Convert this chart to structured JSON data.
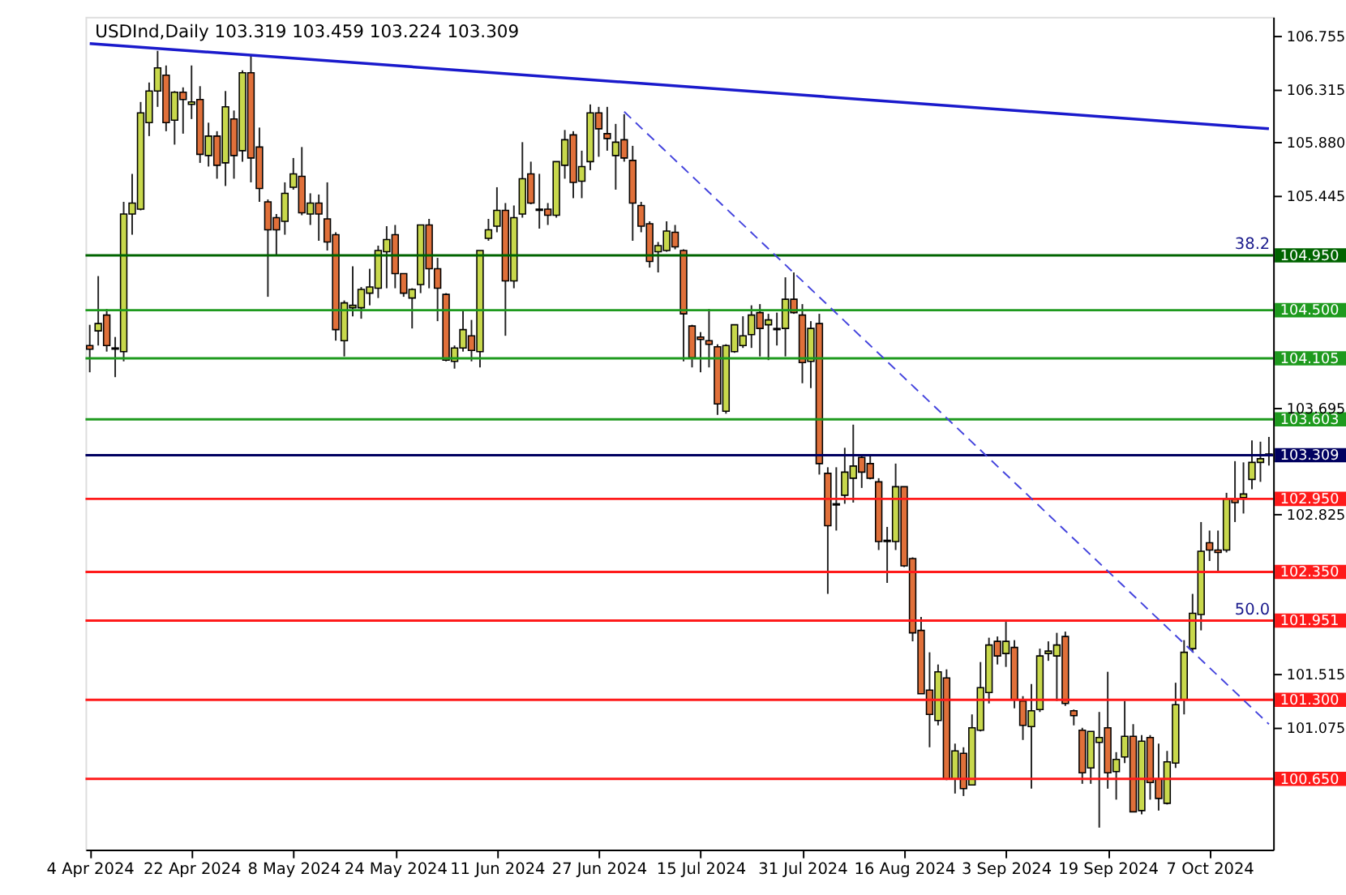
{
  "chart_data": {
    "type": "candlestick",
    "title": "USDInd,Daily 103.319 103.459 103.224 103.309",
    "colors": [
      "#e0703a",
      "#c8d84c",
      "#e0703a",
      "#e0703a",
      "#c8d84c",
      "#c8d84c",
      "#c8d84c",
      "#c8d84c",
      "#c8d84c",
      "#e0703a",
      "#c8d84c",
      "#e0703a",
      "#c8d84c",
      "#e0703a",
      "#c8d84c",
      "#e0703a",
      "#c8d84c",
      "#e0703a",
      "#c8d84c",
      "#e0703a",
      "#e0703a",
      "#e0703a",
      "#e0703a",
      "#c8d84c",
      "#c8d84c",
      "#e0703a",
      "#c8d84c",
      "#e0703a",
      "#e0703a",
      "#e0703a",
      "#c8d84c",
      "#c8d84c",
      "#c8d84c",
      "#c8d84c",
      "#c8d84c",
      "#c8d84c",
      "#e0703a",
      "#e0703a",
      "#c8d84c",
      "#c8d84c",
      "#e0703a",
      "#e0703a",
      "#e0703a",
      "#c8d84c",
      "#c8d84c",
      "#e0703a",
      "#c8d84c",
      "#c8d84c",
      "#c8d84c",
      "#e0703a",
      "#c8d84c",
      "#c8d84c",
      "#e0703a",
      "#e0703a",
      "#e0703a",
      "#c8d84c",
      "#c8d84c",
      "#e0703a",
      "#c8d84c",
      "#c8d84c",
      "#e0703a",
      "#e0703a",
      "#c8d84c",
      "#e0703a",
      "#e0703a",
      "#e0703a",
      "#e0703a",
      "#c8d84c",
      "#c8d84c",
      "#e0703a",
      "#e0703a",
      "#e0703a",
      "#e0703a",
      "#e0703a",
      "#e0703a",
      "#c8d84c",
      "#c8d84c",
      "#c8d84c",
      "#c8d84c",
      "#e0703a",
      "#c8d84c",
      "#c8d84c",
      "#c8d84c",
      "#e0703a",
      "#e0703a",
      "#c8d84c",
      "#e0703a",
      "#e0703a",
      "#e0703a",
      "#c8d84c",
      "#c8d84c",
      "#e0703a",
      "#e0703a",
      "#e0703a",
      "#e0703a",
      "#c8d84c",
      "#e0703a",
      "#e0703a",
      "#e0703a",
      "#e0703a",
      "#c8d84c",
      "#e0703a",
      "#c8d84c",
      "#e0703a",
      "#c8d84c",
      "#c8d84c",
      "#c8d84c",
      "#e0703a",
      "#c8d84c",
      "#e0703a",
      "#e0703a",
      "#c8d84c",
      "#c8d84c",
      "#c8d84c",
      "#c8d84c",
      "#e0703a",
      "#e0703a",
      "#e0703a",
      "#c8d84c",
      "#c8d84c",
      "#e0703a",
      "#c8d84c",
      "#c8d84c",
      "#e0703a",
      "#c8d84c",
      "#e0703a",
      "#e0703a",
      "#c8d84c",
      "#c8d84c",
      "#c8d84c",
      "#c8d84c",
      "#c8d84c",
      "#e0703a",
      "#e0703a",
      "#c8d84c",
      "#e0703a",
      "#c8d84c",
      "#c8d84c",
      "#c8d84c",
      "#e0703a"
    ],
    "categories": [
      "4 Apr 2024",
      null,
      null,
      null,
      null,
      null,
      null,
      null,
      null,
      null,
      null,
      null,
      "22 Apr 2024",
      null,
      null,
      null,
      null,
      null,
      null,
      null,
      null,
      null,
      null,
      null,
      "8 May 2024",
      null,
      null,
      null,
      null,
      null,
      null,
      null,
      null,
      null,
      null,
      null,
      "24 May 2024",
      null,
      null,
      null,
      null,
      null,
      null,
      null,
      null,
      null,
      null,
      null,
      "11 Jun 2024",
      null,
      null,
      null,
      null,
      null,
      null,
      null,
      null,
      null,
      null,
      null,
      "27 Jun 2024",
      null,
      null,
      null,
      null,
      null,
      null,
      null,
      null,
      null,
      null,
      null,
      "15 Jul 2024",
      null,
      null,
      null,
      null,
      null,
      null,
      null,
      null,
      null,
      null,
      null,
      "31 Jul 2024",
      null,
      null,
      null,
      null,
      null,
      null,
      null,
      null,
      null,
      null,
      null,
      "16 Aug 2024",
      null,
      null,
      null,
      null,
      null,
      null,
      null,
      null,
      null,
      null,
      null,
      "3 Sep 2024",
      null,
      null,
      null,
      null,
      null,
      null,
      null,
      null,
      null,
      null,
      null,
      "19 Sep 2024",
      null,
      null,
      null,
      null,
      null,
      null,
      null,
      null,
      null,
      null,
      null,
      "7 Oct 2024",
      null,
      null,
      null,
      null,
      null,
      null,
      null
    ],
    "ohlc": [
      [
        104.21,
        104.38,
        103.99,
        104.18
      ],
      [
        104.33,
        104.78,
        104.21,
        104.39
      ],
      [
        104.46,
        104.51,
        104.16,
        104.21
      ],
      [
        104.19,
        104.28,
        103.95,
        104.18
      ],
      [
        104.16,
        105.39,
        104.08,
        105.29
      ],
      [
        105.29,
        105.62,
        105.12,
        105.38
      ],
      [
        105.33,
        106.21,
        105.32,
        106.12
      ],
      [
        106.04,
        106.37,
        105.93,
        106.3
      ],
      [
        106.3,
        106.63,
        106.17,
        106.49
      ],
      [
        106.43,
        106.51,
        105.97,
        106.04
      ],
      [
        106.06,
        106.3,
        105.86,
        106.29
      ],
      [
        106.29,
        106.33,
        105.95,
        106.23
      ],
      [
        106.19,
        106.51,
        106.07,
        106.21
      ],
      [
        106.23,
        106.34,
        105.71,
        105.78
      ],
      [
        105.77,
        106.04,
        105.68,
        105.93
      ],
      [
        105.93,
        105.97,
        105.58,
        105.69
      ],
      [
        105.71,
        106.3,
        105.52,
        106.17
      ],
      [
        106.07,
        106.14,
        105.58,
        105.77
      ],
      [
        105.81,
        106.47,
        105.72,
        106.45
      ],
      [
        106.45,
        106.6,
        105.55,
        105.75
      ],
      [
        105.84,
        106.0,
        105.39,
        105.5
      ],
      [
        105.39,
        105.41,
        104.61,
        105.16
      ],
      [
        105.26,
        105.29,
        104.95,
        105.16
      ],
      [
        105.23,
        105.55,
        105.12,
        105.46
      ],
      [
        105.51,
        105.75,
        105.49,
        105.62
      ],
      [
        105.6,
        105.84,
        105.28,
        105.3
      ],
      [
        105.29,
        105.46,
        105.2,
        105.38
      ],
      [
        105.38,
        105.45,
        105.07,
        105.29
      ],
      [
        105.25,
        105.55,
        104.99,
        105.06
      ],
      [
        105.12,
        105.14,
        104.25,
        104.34
      ],
      [
        104.25,
        104.58,
        104.12,
        104.56
      ],
      [
        104.52,
        104.86,
        104.45,
        104.54
      ],
      [
        104.52,
        104.69,
        104.43,
        104.67
      ],
      [
        104.64,
        104.84,
        104.54,
        104.69
      ],
      [
        104.68,
        105.03,
        104.6,
        104.99
      ],
      [
        104.98,
        105.19,
        104.68,
        105.08
      ],
      [
        105.12,
        105.2,
        104.68,
        104.8
      ],
      [
        104.8,
        104.8,
        104.61,
        104.64
      ],
      [
        104.6,
        104.68,
        104.35,
        104.67
      ],
      [
        104.71,
        105.2,
        104.64,
        105.2
      ],
      [
        105.2,
        105.25,
        104.68,
        104.84
      ],
      [
        104.84,
        104.93,
        104.41,
        104.68
      ],
      [
        104.63,
        104.64,
        104.08,
        104.09
      ],
      [
        104.08,
        104.21,
        104.02,
        104.19
      ],
      [
        104.19,
        104.5,
        104.16,
        104.34
      ],
      [
        104.29,
        104.42,
        104.08,
        104.17
      ],
      [
        104.16,
        104.99,
        104.03,
        104.99
      ],
      [
        105.09,
        105.25,
        105.07,
        105.16
      ],
      [
        105.19,
        105.51,
        105.14,
        105.32
      ],
      [
        105.32,
        105.38,
        104.29,
        104.74
      ],
      [
        104.74,
        105.36,
        104.68,
        105.26
      ],
      [
        105.29,
        105.88,
        105.26,
        105.58
      ],
      [
        105.62,
        105.72,
        105.37,
        105.38
      ],
      [
        105.33,
        105.62,
        105.17,
        105.32
      ],
      [
        105.33,
        105.38,
        105.2,
        105.28
      ],
      [
        105.28,
        105.72,
        105.26,
        105.72
      ],
      [
        105.69,
        105.98,
        105.58,
        105.9
      ],
      [
        105.94,
        105.97,
        105.42,
        105.55
      ],
      [
        105.56,
        105.81,
        105.42,
        105.68
      ],
      [
        105.72,
        106.19,
        105.65,
        106.12
      ],
      [
        106.12,
        106.17,
        105.76,
        105.99
      ],
      [
        105.95,
        106.17,
        105.81,
        105.91
      ],
      [
        105.77,
        106.03,
        105.49,
        105.88
      ],
      [
        105.9,
        106.11,
        105.72,
        105.75
      ],
      [
        105.73,
        105.85,
        105.07,
        105.38
      ],
      [
        105.36,
        105.39,
        105.14,
        105.19
      ],
      [
        105.21,
        105.23,
        104.85,
        104.9
      ],
      [
        104.98,
        105.06,
        104.81,
        105.03
      ],
      [
        104.99,
        105.23,
        104.98,
        105.15
      ],
      [
        105.14,
        105.2,
        105.0,
        105.02
      ],
      [
        104.99,
        105.0,
        104.08,
        104.47
      ],
      [
        104.37,
        104.38,
        104.03,
        104.11
      ],
      [
        104.28,
        104.32,
        103.99,
        104.26
      ],
      [
        104.25,
        104.51,
        104.03,
        104.22
      ],
      [
        104.2,
        104.22,
        103.64,
        103.73
      ],
      [
        103.67,
        104.22,
        103.65,
        104.21
      ],
      [
        104.16,
        104.38,
        104.15,
        104.38
      ],
      [
        104.21,
        104.45,
        104.19,
        104.29
      ],
      [
        104.3,
        104.54,
        104.19,
        104.46
      ],
      [
        104.48,
        104.55,
        104.12,
        104.35
      ],
      [
        104.38,
        104.47,
        104.09,
        104.42
      ],
      [
        104.34,
        104.48,
        104.21,
        104.35
      ],
      [
        104.35,
        104.77,
        104.12,
        104.59
      ],
      [
        104.59,
        104.81,
        104.47,
        104.48
      ],
      [
        104.46,
        104.55,
        103.9,
        104.07
      ],
      [
        104.08,
        104.41,
        103.86,
        104.35
      ],
      [
        104.39,
        104.47,
        103.15,
        103.24
      ],
      [
        103.16,
        103.21,
        102.17,
        102.73
      ],
      [
        102.91,
        103.21,
        102.69,
        102.9
      ],
      [
        102.98,
        103.37,
        102.91,
        103.17
      ],
      [
        103.12,
        103.56,
        102.92,
        103.22
      ],
      [
        103.29,
        103.3,
        103.04,
        103.17
      ],
      [
        103.24,
        103.3,
        103.11,
        103.12
      ],
      [
        103.09,
        103.12,
        102.53,
        102.6
      ],
      [
        102.61,
        102.72,
        102.26,
        102.6
      ],
      [
        102.6,
        103.24,
        102.53,
        103.05
      ],
      [
        103.05,
        103.05,
        102.39,
        102.4
      ],
      [
        102.46,
        102.47,
        101.78,
        101.85
      ],
      [
        101.87,
        101.98,
        101.35,
        101.35
      ],
      [
        101.38,
        101.69,
        100.91,
        101.18
      ],
      [
        101.13,
        101.59,
        101.09,
        101.53
      ],
      [
        101.48,
        101.55,
        100.64,
        100.65
      ],
      [
        100.65,
        100.94,
        100.53,
        100.88
      ],
      [
        100.86,
        100.91,
        100.51,
        100.57
      ],
      [
        100.6,
        101.18,
        100.6,
        101.07
      ],
      [
        101.05,
        101.61,
        101.04,
        101.4
      ],
      [
        101.36,
        101.81,
        101.27,
        101.75
      ],
      [
        101.78,
        101.82,
        101.59,
        101.66
      ],
      [
        101.68,
        101.94,
        101.57,
        101.78
      ],
      [
        101.73,
        101.79,
        101.23,
        101.3
      ],
      [
        101.29,
        101.33,
        100.97,
        101.09
      ],
      [
        101.08,
        101.43,
        100.57,
        101.21
      ],
      [
        101.22,
        101.72,
        101.2,
        101.66
      ],
      [
        101.68,
        101.78,
        101.62,
        101.7
      ],
      [
        101.66,
        101.85,
        101.29,
        101.75
      ],
      [
        101.82,
        101.86,
        101.25,
        101.27
      ],
      [
        101.21,
        101.22,
        101.09,
        101.17
      ],
      [
        101.05,
        101.07,
        100.61,
        100.7
      ],
      [
        100.74,
        101.04,
        100.61,
        101.04
      ],
      [
        100.95,
        101.2,
        100.25,
        100.99
      ],
      [
        101.07,
        101.53,
        100.57,
        100.7
      ],
      [
        100.71,
        100.87,
        100.48,
        100.81
      ],
      [
        100.83,
        101.29,
        100.78,
        101.0
      ],
      [
        101.0,
        101.1,
        100.38,
        100.38
      ],
      [
        100.39,
        101.01,
        100.36,
        100.96
      ],
      [
        100.99,
        101.01,
        100.48,
        100.62
      ],
      [
        100.65,
        100.94,
        100.39,
        100.49
      ],
      [
        100.45,
        100.88,
        100.44,
        100.79
      ],
      [
        100.78,
        101.44,
        100.74,
        101.26
      ],
      [
        101.3,
        101.79,
        101.18,
        101.69
      ],
      [
        101.72,
        102.17,
        101.69,
        102.01
      ],
      [
        102.0,
        102.76,
        101.87,
        102.52
      ],
      [
        102.59,
        102.69,
        102.44,
        102.53
      ],
      [
        102.53,
        102.69,
        102.34,
        102.51
      ],
      [
        102.53,
        103.0,
        102.51,
        102.95
      ],
      [
        102.95,
        103.26,
        102.76,
        102.92
      ],
      [
        102.96,
        103.25,
        102.83,
        102.99
      ],
      [
        103.11,
        103.43,
        103.03,
        103.25
      ],
      [
        103.25,
        103.42,
        103.09,
        103.28
      ],
      [
        103.319,
        103.459,
        103.224,
        103.309
      ]
    ],
    "series": [
      {
        "type": "line",
        "color": "#1a1acc",
        "values": [
          106.69,
          null,
          null,
          null,
          null,
          null,
          null,
          null,
          null,
          null,
          null,
          null,
          null,
          null,
          null,
          null,
          null,
          null,
          null,
          null,
          null,
          null,
          null,
          null,
          null,
          null,
          null,
          null,
          null,
          null,
          null,
          null,
          null,
          null,
          null,
          null,
          null,
          null,
          null,
          null,
          null,
          null,
          null,
          null,
          null,
          null,
          null,
          null,
          null,
          null,
          null,
          null,
          null,
          null,
          null,
          null,
          null,
          null,
          null,
          null,
          null,
          null,
          null,
          null,
          null,
          null,
          null,
          null,
          null,
          null,
          null,
          null,
          null,
          null,
          null,
          null,
          null,
          null,
          null,
          null,
          null,
          null,
          null,
          null,
          null,
          null,
          null,
          null,
          null,
          null,
          null,
          null,
          null,
          null,
          null,
          null,
          null,
          null,
          null,
          null,
          null,
          null,
          null,
          null,
          null,
          null,
          null,
          null,
          null,
          null,
          null,
          null,
          null,
          null,
          null,
          null,
          null,
          null,
          null,
          null,
          null,
          null,
          null,
          null,
          null,
          null,
          null,
          null,
          null,
          null,
          null,
          null,
          null,
          null,
          null,
          null,
          null,
          null,
          null,
          105.99
        ]
      },
      {
        "type": "line",
        "color": "#4444dd",
        "line_style": "dashed",
        "values": [
          null,
          null,
          null,
          null,
          null,
          null,
          null,
          null,
          null,
          null,
          null,
          null,
          null,
          null,
          null,
          null,
          null,
          null,
          null,
          null,
          null,
          null,
          null,
          null,
          null,
          null,
          null,
          null,
          null,
          null,
          null,
          null,
          null,
          null,
          null,
          null,
          null,
          null,
          null,
          null,
          null,
          null,
          null,
          null,
          null,
          null,
          null,
          null,
          null,
          null,
          null,
          null,
          null,
          null,
          null,
          null,
          null,
          null,
          null,
          null,
          null,
          null,
          null,
          106.13,
          null,
          null,
          null,
          null,
          null,
          null,
          null,
          null,
          null,
          null,
          null,
          null,
          null,
          null,
          null,
          null,
          null,
          null,
          null,
          null,
          null,
          null,
          null,
          null,
          null,
          null,
          null,
          null,
          null,
          null,
          null,
          null,
          null,
          null,
          null,
          null,
          null,
          null,
          null,
          null,
          null,
          null,
          null,
          null,
          null,
          null,
          null,
          null,
          null,
          null,
          null,
          null,
          null,
          null,
          null,
          null,
          null,
          null,
          null,
          null,
          null,
          null,
          null,
          null,
          null,
          null,
          null,
          null,
          null,
          null,
          null,
          null,
          null,
          null,
          null,
          101.1
        ]
      }
    ],
    "ylim": [
      100.07,
      106.91
    ],
    "yticks": [
      {
        "value": 106.755,
        "label": "106.755"
      },
      {
        "value": 106.315,
        "label": "106.315"
      },
      {
        "value": 105.88,
        "label": "105.880"
      },
      {
        "value": 105.445,
        "label": "105.445"
      },
      {
        "value": 103.695,
        "label": "103.695"
      },
      {
        "value": 102.825,
        "label": "102.825"
      },
      {
        "value": 101.515,
        "label": "101.515"
      },
      {
        "value": 101.075,
        "label": "101.075"
      }
    ],
    "ref_lines": [
      {
        "axis": "y",
        "value": 104.95,
        "label": "104.950",
        "color": "#006400"
      },
      {
        "axis": "y",
        "value": 104.5,
        "label": "104.500",
        "color": "#1e9a1e"
      },
      {
        "axis": "y",
        "value": 104.105,
        "label": "104.105",
        "color": "#1e9a1e"
      },
      {
        "axis": "y",
        "value": 103.603,
        "label": "103.603",
        "color": "#1e9a1e"
      },
      {
        "axis": "y",
        "value": 103.309,
        "label": "103.309",
        "color": "#000060"
      },
      {
        "axis": "y",
        "value": 102.95,
        "label": "102.950",
        "color": "#ff1a1a"
      },
      {
        "axis": "y",
        "value": 102.35,
        "label": "102.350",
        "color": "#ff1a1a"
      },
      {
        "axis": "y",
        "value": 101.951,
        "label": "101.951",
        "color": "#ff1a1a"
      },
      {
        "axis": "y",
        "value": 101.3,
        "label": "101.300",
        "color": "#ff1a1a"
      },
      {
        "axis": "y",
        "value": 100.65,
        "label": "100.650",
        "color": "#ff1a1a"
      }
    ],
    "annotations": [
      {
        "text": "38.2",
        "y": 104.95
      },
      {
        "text": "50.0",
        "y": 101.951
      }
    ]
  }
}
